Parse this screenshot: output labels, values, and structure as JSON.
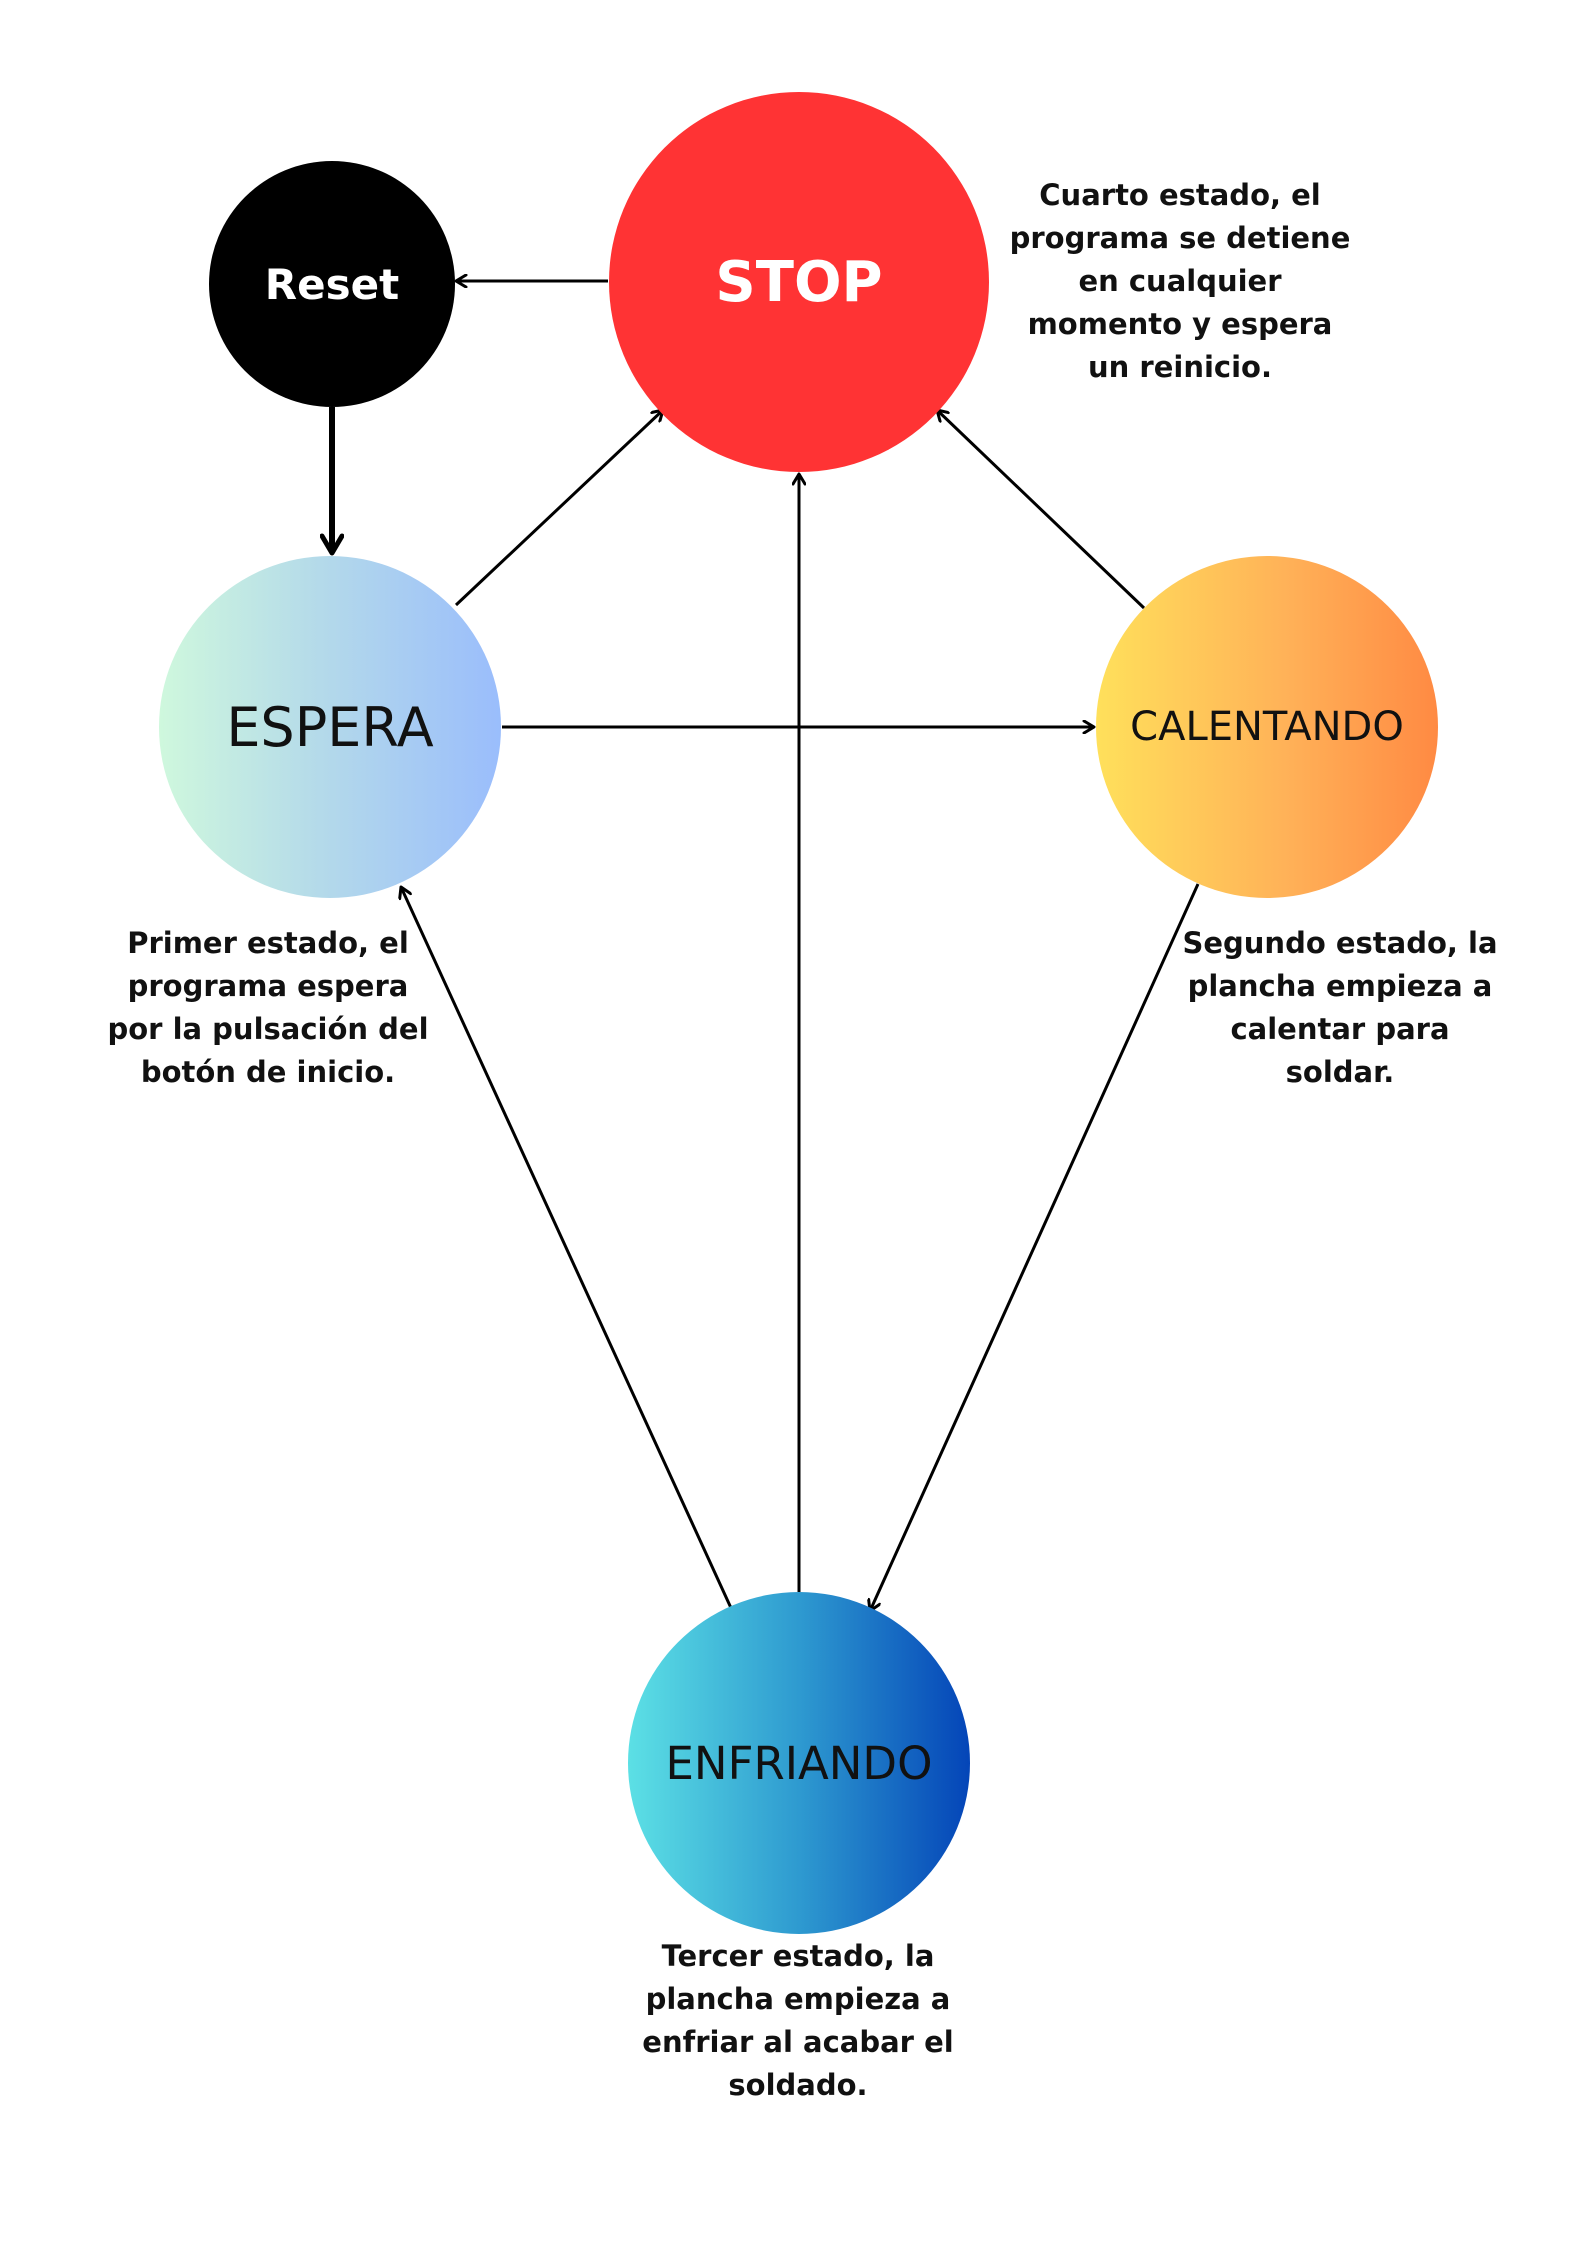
{
  "diagram": {
    "colors": {
      "stop": "#ff3334",
      "reset": "#000000",
      "espera_gradient": [
        "#cff8dd",
        "#9abdfc"
      ],
      "calentando_gradient": [
        "#ffe05b",
        "#ff8a43"
      ],
      "enfriando_gradient": [
        "#5ce0e5",
        "#0445b8"
      ],
      "arrow": "#000000"
    },
    "nodes": {
      "stop": {
        "label": "STOP"
      },
      "reset": {
        "label": "Reset"
      },
      "espera": {
        "label": "ESPERA"
      },
      "calentando": {
        "label": "CALENTANDO"
      },
      "enfriando": {
        "label": "ENFRIANDO"
      }
    },
    "notes": {
      "stop": {
        "lines": [
          "Cuarto estado, el",
          "programa se detiene",
          "en cualquier",
          "momento y espera",
          "un reinicio."
        ]
      },
      "espera": {
        "lines": [
          "Primer estado, el",
          "programa espera",
          "por la pulsación del",
          "botón de inicio."
        ]
      },
      "calentando": {
        "lines": [
          "Segundo estado, la",
          "plancha empieza a",
          "calentar para",
          "soldar."
        ]
      },
      "enfriando": {
        "lines": [
          "Tercer estado, la",
          "plancha empieza a",
          "enfriar al acabar el",
          "soldado."
        ]
      }
    },
    "edges": [
      {
        "from": "stop",
        "to": "reset"
      },
      {
        "from": "reset",
        "to": "espera"
      },
      {
        "from": "espera",
        "to": "stop"
      },
      {
        "from": "espera",
        "to": "calentando"
      },
      {
        "from": "calentando",
        "to": "stop"
      },
      {
        "from": "calentando",
        "to": "enfriando"
      },
      {
        "from": "enfriando",
        "to": "espera"
      },
      {
        "from": "enfriando",
        "to": "stop"
      }
    ]
  }
}
